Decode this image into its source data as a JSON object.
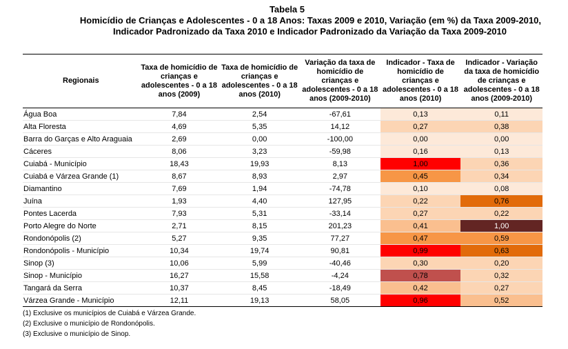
{
  "title": {
    "line1": "Tabela 5",
    "line2": "Homicídio de Crianças e Adolescentes - 0 a 18 Anos: Taxas 2009 e 2010, Variação (em %) da Taxa 2009-2010,",
    "line3": "Indicador Padronizado da Taxa 2010 e Indicador Padronizado da Variação da Taxa 2009-2010"
  },
  "headers": [
    "Regionais",
    "Taxa de homicídio de crianças e adolescentes - 0 a 18 anos (2009)",
    "Taxa de homicídio de crianças e adolescentes - 0 a 18 anos (2010)",
    "Variação da taxa de homicídio de crianças e adolescentes - 0 a 18 anos (2009-2010)",
    "Indicador - Taxa de homicídio de crianças e adolescentes - 0 a 18 anos (2010)",
    "Indicador - Variação da taxa de homicídio de crianças e adolescentes - 0 a 18 anos (2009-2010)"
  ],
  "rows": [
    {
      "name": "Água Boa",
      "t2009": "7,84",
      "t2010": "2,54",
      "var": "-67,61",
      "ind_taxa": "0,13",
      "ind_var": "0,11",
      "color_taxa": "#fde9d9",
      "color_var": "#fde9d9"
    },
    {
      "name": "Alta Floresta",
      "t2009": "4,69",
      "t2010": "5,35",
      "var": "14,12",
      "ind_taxa": "0,27",
      "ind_var": "0,38",
      "color_taxa": "#fcd5b4",
      "color_var": "#fcd5b4"
    },
    {
      "name": "Barra do Garças e Alto Araguaia",
      "t2009": "2,69",
      "t2010": "0,00",
      "var": "-100,00",
      "ind_taxa": "0,00",
      "ind_var": "0,00",
      "color_taxa": "#fde9d9",
      "color_var": "#fde9d9"
    },
    {
      "name": "Cáceres",
      "t2009": "8,06",
      "t2010": "3,23",
      "var": "-59,98",
      "ind_taxa": "0,16",
      "ind_var": "0,13",
      "color_taxa": "#fde9d9",
      "color_var": "#fde9d9"
    },
    {
      "name": "Cuiabá - Município",
      "t2009": "18,43",
      "t2010": "19,93",
      "var": "8,13",
      "ind_taxa": "1,00",
      "ind_var": "0,36",
      "color_taxa": "#ff0000",
      "color_var": "#fcd5b4"
    },
    {
      "name": "Cuiabá e Várzea Grande (1)",
      "t2009": "8,67",
      "t2010": "8,93",
      "var": "2,97",
      "ind_taxa": "0,45",
      "ind_var": "0,34",
      "color_taxa": "#f79646",
      "color_var": "#fcd5b4"
    },
    {
      "name": "Diamantino",
      "t2009": "7,69",
      "t2010": "1,94",
      "var": "-74,78",
      "ind_taxa": "0,10",
      "ind_var": "0,08",
      "color_taxa": "#fde9d9",
      "color_var": "#fde9d9"
    },
    {
      "name": "Juína",
      "t2009": "1,93",
      "t2010": "4,40",
      "var": "127,95",
      "ind_taxa": "0,22",
      "ind_var": "0,76",
      "color_taxa": "#fcd5b4",
      "color_var": "#e26b0a"
    },
    {
      "name": "Pontes Lacerda",
      "t2009": "7,93",
      "t2010": "5,31",
      "var": "-33,14",
      "ind_taxa": "0,27",
      "ind_var": "0,22",
      "color_taxa": "#fcd5b4",
      "color_var": "#fcd5b4"
    },
    {
      "name": "Porto Alegre do Norte",
      "t2009": "2,71",
      "t2010": "8,15",
      "var": "201,23",
      "ind_taxa": "0,41",
      "ind_var": "1,00",
      "color_taxa": "#fabf8f",
      "color_var": "#632523"
    },
    {
      "name": "Rondonópolis (2)",
      "t2009": "5,27",
      "t2010": "9,35",
      "var": "77,27",
      "ind_taxa": "0,47",
      "ind_var": "0,59",
      "color_taxa": "#f79646",
      "color_var": "#f79646"
    },
    {
      "name": "Rondonópolis - Município",
      "t2009": "10,34",
      "t2010": "19,74",
      "var": "90,81",
      "ind_taxa": "0,99",
      "ind_var": "0,63",
      "color_taxa": "#ff0000",
      "color_var": "#e26b0a"
    },
    {
      "name": "Sinop (3)",
      "t2009": "10,06",
      "t2010": "5,99",
      "var": "-40,46",
      "ind_taxa": "0,30",
      "ind_var": "0,20",
      "color_taxa": "#fcd5b4",
      "color_var": "#fcd5b4"
    },
    {
      "name": "Sinop - Município",
      "t2009": "16,27",
      "t2010": "15,58",
      "var": "-4,24",
      "ind_taxa": "0,78",
      "ind_var": "0,32",
      "color_taxa": "#c0504d",
      "color_var": "#fcd5b4"
    },
    {
      "name": "Tangará da Serra",
      "t2009": "10,37",
      "t2010": "8,45",
      "var": "-18,49",
      "ind_taxa": "0,42",
      "ind_var": "0,27",
      "color_taxa": "#fabf8f",
      "color_var": "#fcd5b4"
    },
    {
      "name": "Várzea Grande - Município",
      "t2009": "12,11",
      "t2010": "19,13",
      "var": "58,05",
      "ind_taxa": "0,96",
      "ind_var": "0,52",
      "color_taxa": "#ff0000",
      "color_var": "#fabf8f"
    }
  ],
  "notes": [
    "(1) Exclusive os municípios de Cuiabá e Várzea Grande.",
    "(2) Exclusive o município de Rondonópolis.",
    "(3) Exclusive o município de Sinop."
  ]
}
